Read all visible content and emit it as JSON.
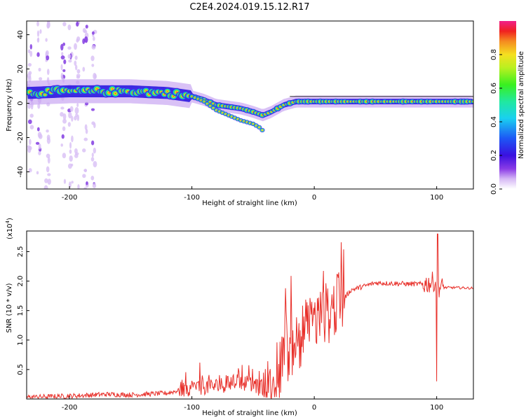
{
  "figure_title": "C2E4.2024.019.15.12.R17",
  "chart_data": [
    {
      "type": "heatmap",
      "title": "C2E4.2024.019.15.12.R17",
      "xlabel": "Height of straight line (km)",
      "ylabel": "Frequency (Hz)",
      "xlim": [
        -235,
        130
      ],
      "ylim": [
        -50,
        48
      ],
      "x_ticks": [
        -200,
        -100,
        0,
        100
      ],
      "x_tick_labels": [
        "-200",
        "-100",
        "0",
        "100"
      ],
      "y_ticks": [
        40,
        20,
        0,
        -20,
        -40
      ],
      "y_tick_labels": [
        "40",
        "20",
        "0",
        "-20",
        "-40"
      ],
      "colorbar": {
        "label": "Normalized spectral amplitude",
        "range": [
          0,
          1
        ],
        "ticks": [
          0.0,
          0.2,
          0.4,
          0.6,
          0.8
        ],
        "tick_labels": [
          "0.0",
          "0.2",
          "0.4",
          "0.6",
          "0.8"
        ],
        "colormap": "rainbow (white → violet → blue → cyan → green → yellow → orange → red → magenta)"
      },
      "main_trace": {
        "x": [
          -235,
          -200,
          -150,
          -120,
          -100,
          -90,
          -80,
          -70,
          -60,
          -50,
          -42,
          -35,
          -25,
          -15,
          -5,
          0,
          20,
          50,
          100,
          130
        ],
        "y": [
          6,
          7,
          7,
          6,
          4,
          2,
          -1,
          -2,
          -3,
          -5,
          -7,
          -5,
          -1,
          1,
          1,
          1,
          1,
          1,
          1,
          1
        ]
      },
      "secondary_trace": {
        "x": [
          -100,
          -90,
          -80,
          -70,
          -60,
          -50,
          -45,
          -42
        ],
        "y": [
          4,
          1,
          -4,
          -7,
          -10,
          -12,
          -14,
          -16
        ]
      },
      "baseline_trace": {
        "x": [
          -20,
          0,
          50,
          100,
          130
        ],
        "y": [
          4,
          4,
          4,
          4,
          4
        ]
      }
    },
    {
      "type": "line",
      "xlabel": "Height of straight line (km)",
      "ylabel": "SNR (10 * v/v)",
      "y_scale_label": "(x10",
      "y_scale_exponent": "4",
      "y_scale_suffix": ")",
      "xlim": [
        -235,
        130
      ],
      "ylim": [
        0,
        2.85
      ],
      "x_ticks": [
        -200,
        -100,
        0,
        100
      ],
      "x_tick_labels": [
        "-200",
        "-100",
        "0",
        "100"
      ],
      "y_ticks": [
        0.5,
        1.0,
        1.5,
        2.0,
        2.5
      ],
      "y_tick_labels": [
        "0.5",
        "1.0",
        "1.5",
        "2.0",
        "2.5"
      ],
      "series": [
        {
          "name": "SNR",
          "color": "#e8302a",
          "x": [
            -235,
            -200,
            -170,
            -150,
            -120,
            -100,
            -80,
            -60,
            -40,
            -32,
            -25,
            -15,
            -5,
            0,
            10,
            20,
            30,
            50,
            80,
            90,
            95,
            98,
            100,
            102,
            105,
            115,
            130
          ],
          "y": [
            0.03,
            0.05,
            0.08,
            0.07,
            0.1,
            0.2,
            0.22,
            0.3,
            0.15,
            0.12,
            0.7,
            1.0,
            1.2,
            1.3,
            1.45,
            1.6,
            1.85,
            1.97,
            1.95,
            1.95,
            1.97,
            2.0,
            1.9,
            1.9,
            1.89,
            1.89,
            1.88
          ]
        }
      ]
    }
  ]
}
